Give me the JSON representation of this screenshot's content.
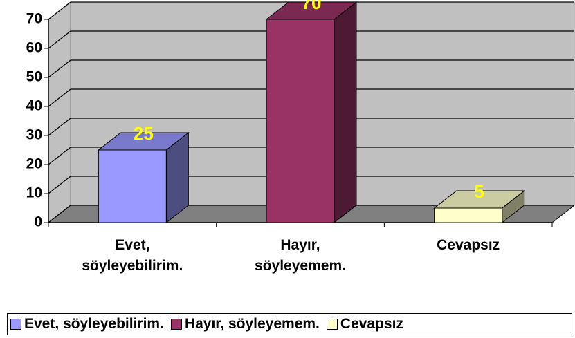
{
  "chart_data": {
    "type": "bar3d",
    "categories": [
      "Evet, söyleyebilirim.",
      "Hayır, söyleyemem.",
      "Cevapsız"
    ],
    "values": [
      25,
      70,
      5
    ],
    "colors": [
      "#9999ff",
      "#993366",
      "#ffffcc"
    ],
    "ylim": [
      0,
      70
    ],
    "yticks": [
      0,
      10,
      20,
      30,
      40,
      50,
      60,
      70
    ],
    "grid": true,
    "legend": "bottom"
  }
}
